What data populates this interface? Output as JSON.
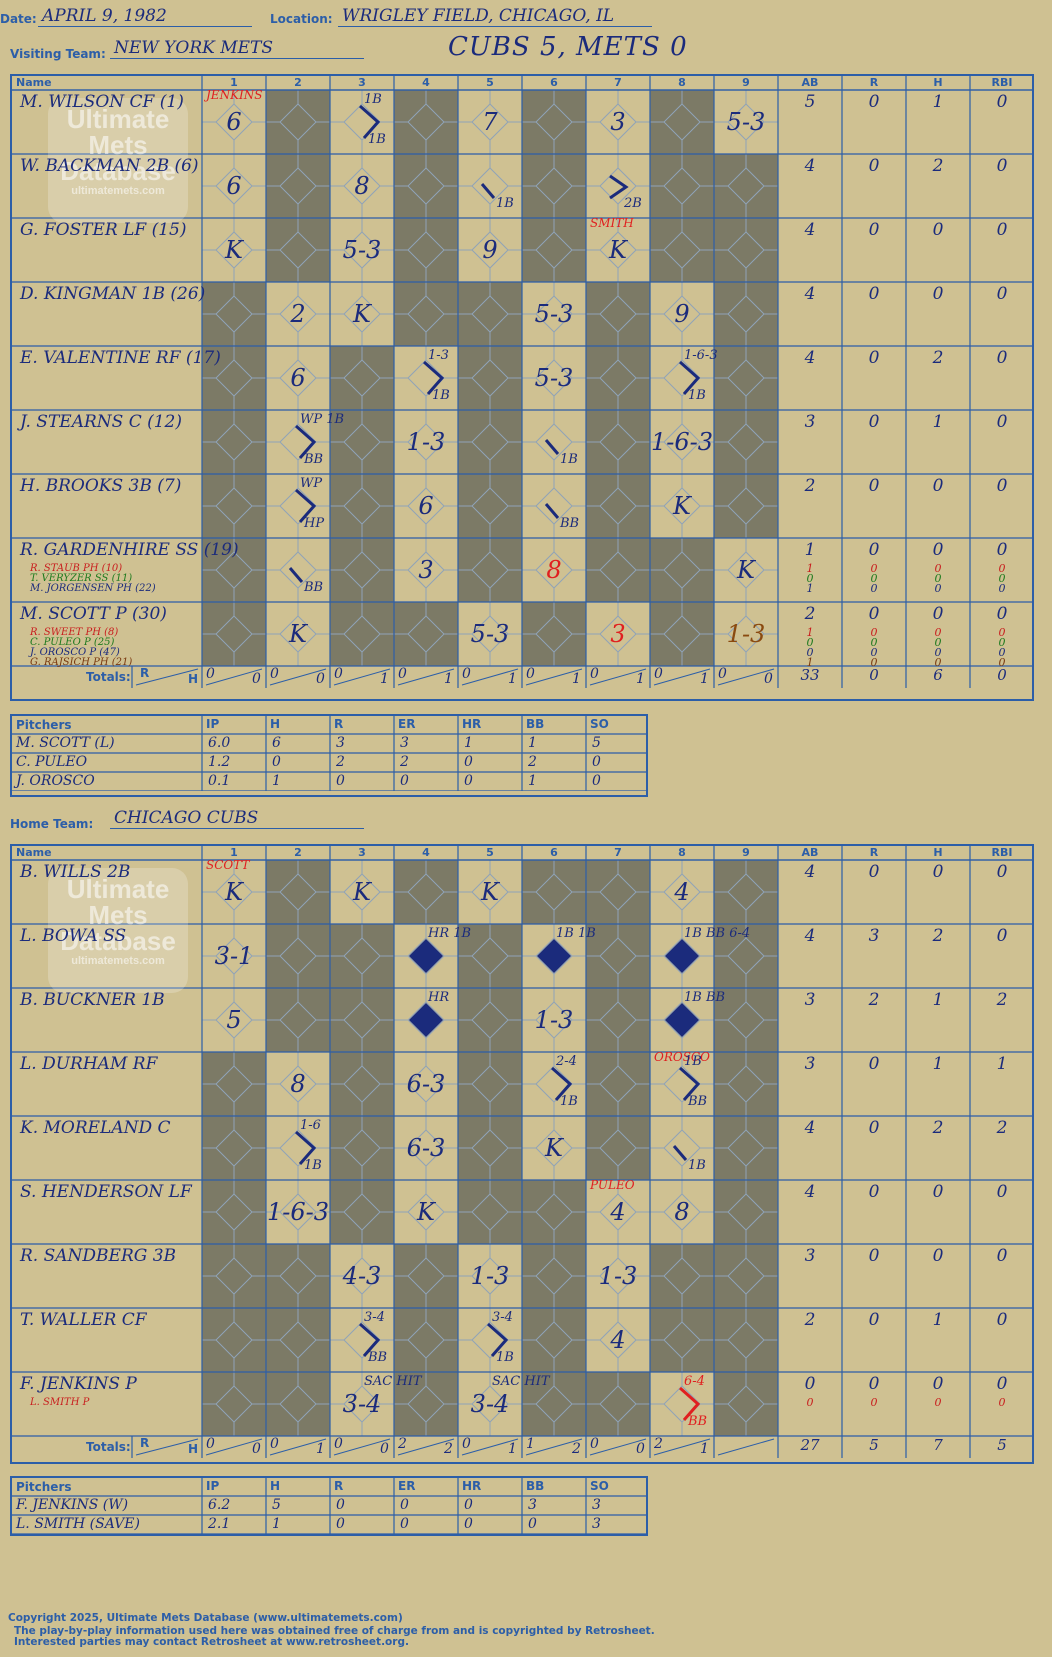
{
  "header": {
    "date_label": "Date:",
    "date": "APRIL 9, 1982",
    "location_label": "Location:",
    "location": "WRIGLEY FIELD, CHICAGO, IL",
    "visiting_label": "Visiting Team:",
    "visiting_team": "NEW YORK METS",
    "headline": "CUBS 5, METS 0",
    "home_label": "Home Team:",
    "home_team": "CHICAGO CUBS"
  },
  "columns": {
    "name": "Name",
    "innings": [
      "1",
      "2",
      "3",
      "4",
      "5",
      "6",
      "7",
      "8",
      "9"
    ],
    "stats": [
      "AB",
      "R",
      "H",
      "RBI"
    ],
    "totals": "Totals:",
    "r": "R",
    "h": "H"
  },
  "watermark": {
    "line1": "Ultimate",
    "line2": "Mets",
    "line3": "Database",
    "site": "ultimatemets.com"
  },
  "visitors": {
    "batters": [
      {
        "name": "M. WILSON CF (1)",
        "subs": [],
        "ab": "5",
        "r": "0",
        "h": "1",
        "rbi": "0",
        "marks": [
          {
            "i": 1,
            "t": "6"
          },
          {
            "i": 3,
            "t": "",
            "path": "1B",
            "note": "1B"
          },
          {
            "i": 5,
            "t": "7"
          },
          {
            "i": 7,
            "t": "3"
          },
          {
            "i": 9,
            "t": "5-3"
          }
        ],
        "pitcherNote": {
          "i": 1,
          "t": "JENKINS"
        }
      },
      {
        "name": "W. BACKMAN 2B (6)",
        "subs": [],
        "ab": "4",
        "r": "0",
        "h": "2",
        "rbi": "0",
        "marks": [
          {
            "i": 1,
            "t": "6"
          },
          {
            "i": 3,
            "t": "8"
          },
          {
            "i": 5,
            "t": "",
            "path": "1B"
          },
          {
            "i": 7,
            "t": "",
            "path": "2B"
          }
        ]
      },
      {
        "name": "G. FOSTER LF (15)",
        "subs": [],
        "ab": "4",
        "r": "0",
        "h": "0",
        "rbi": "0",
        "marks": [
          {
            "i": 1,
            "t": "K"
          },
          {
            "i": 3,
            "t": "5-3"
          },
          {
            "i": 5,
            "t": "9"
          },
          {
            "i": 7,
            "t": "K"
          }
        ],
        "pitcherNote": {
          "i": 7,
          "t": "SMITH"
        }
      },
      {
        "name": "D. KINGMAN 1B (26)",
        "subs": [],
        "ab": "4",
        "r": "0",
        "h": "0",
        "rbi": "0",
        "marks": [
          {
            "i": 2,
            "t": "2"
          },
          {
            "i": 3,
            "t": "K"
          },
          {
            "i": 6,
            "t": "5-3"
          },
          {
            "i": 8,
            "t": "9"
          }
        ]
      },
      {
        "name": "E. VALENTINE RF (17)",
        "subs": [],
        "ab": "4",
        "r": "0",
        "h": "2",
        "rbi": "0",
        "marks": [
          {
            "i": 2,
            "t": "6"
          },
          {
            "i": 4,
            "t": "",
            "path": "1B",
            "note": "1-3"
          },
          {
            "i": 6,
            "t": "5-3"
          },
          {
            "i": 8,
            "t": "",
            "path": "1B",
            "note": "1-6-3"
          }
        ]
      },
      {
        "name": "J. STEARNS C (12)",
        "subs": [],
        "ab": "3",
        "r": "0",
        "h": "1",
        "rbi": "0",
        "marks": [
          {
            "i": 2,
            "t": "",
            "path": "BB",
            "note": "WP 1B"
          },
          {
            "i": 4,
            "t": "1-3"
          },
          {
            "i": 6,
            "t": "",
            "path": "1B"
          },
          {
            "i": 8,
            "t": "1-6-3"
          }
        ]
      },
      {
        "name": "H. BROOKS 3B (7)",
        "subs": [],
        "ab": "2",
        "r": "0",
        "h": "0",
        "rbi": "0",
        "marks": [
          {
            "i": 2,
            "t": "",
            "path": "HP",
            "note": "WP"
          },
          {
            "i": 4,
            "t": "6"
          },
          {
            "i": 6,
            "t": "",
            "path": "BB"
          },
          {
            "i": 8,
            "t": "K"
          }
        ]
      },
      {
        "name": "R. GARDENHIRE SS (19)",
        "subs": [
          "R. STAUB PH (10)",
          "T. VERYZER SS (11)",
          "M. JORGENSEN PH (22)"
        ],
        "ab": "1",
        "r": "0",
        "h": "0",
        "rbi": "0",
        "subStats": [
          [
            "1",
            "0",
            "0",
            "0"
          ],
          [
            "0",
            "0",
            "0",
            "0"
          ],
          [
            "1",
            "0",
            "0",
            "0"
          ]
        ],
        "marks": [
          {
            "i": 2,
            "t": "",
            "path": "BB"
          },
          {
            "i": 4,
            "t": "3"
          },
          {
            "i": 6,
            "t": "8",
            "red": true
          },
          {
            "i": 9,
            "t": "K"
          }
        ]
      },
      {
        "name": "M. SCOTT P (30)",
        "subs": [
          "R. SWEET PH (8)",
          "C. PULEO P (25)",
          "J. OROSCO P (47)",
          "G. RAJSICH PH (21)"
        ],
        "ab": "2",
        "r": "0",
        "h": "0",
        "rbi": "0",
        "subStats": [
          [
            "1",
            "0",
            "0",
            "0"
          ],
          [
            "0",
            "0",
            "0",
            "0"
          ],
          [
            "0",
            "0",
            "0",
            "0"
          ],
          [
            "1",
            "0",
            "0",
            "0"
          ]
        ],
        "marks": [
          {
            "i": 2,
            "t": "K"
          },
          {
            "i": 5,
            "t": "5-3"
          },
          {
            "i": 7,
            "t": "3",
            "red": true
          },
          {
            "i": 9,
            "t": "1-3",
            "brown": true
          }
        ]
      }
    ],
    "totals": [
      [
        "0",
        "0"
      ],
      [
        "0",
        "0"
      ],
      [
        "0",
        "1"
      ],
      [
        "0",
        "1"
      ],
      [
        "0",
        "1"
      ],
      [
        "0",
        "1"
      ],
      [
        "0",
        "1"
      ],
      [
        "0",
        "1"
      ],
      [
        "0",
        "0"
      ]
    ],
    "stat_totals": [
      "33",
      "0",
      "6",
      "0"
    ],
    "pitchers_label": "Pitchers",
    "pitcher_cols": [
      "IP",
      "H",
      "R",
      "ER",
      "HR",
      "BB",
      "SO"
    ],
    "pitchers": [
      {
        "name": "M. SCOTT (L)",
        "vals": [
          "6.0",
          "6",
          "3",
          "3",
          "1",
          "1",
          "5"
        ]
      },
      {
        "name": "C. PULEO",
        "vals": [
          "1.2",
          "0",
          "2",
          "2",
          "0",
          "2",
          "0"
        ]
      },
      {
        "name": "J. OROSCO",
        "vals": [
          "0.1",
          "1",
          "0",
          "0",
          "0",
          "1",
          "0"
        ]
      }
    ]
  },
  "home": {
    "batters": [
      {
        "name": "B. WILLS 2B",
        "subs": [],
        "ab": "4",
        "r": "0",
        "h": "0",
        "rbi": "0",
        "marks": [
          {
            "i": 1,
            "t": "K"
          },
          {
            "i": 3,
            "t": "K"
          },
          {
            "i": 5,
            "t": "K"
          },
          {
            "i": 8,
            "t": "4"
          }
        ],
        "pitcherNote": {
          "i": 1,
          "t": "SCOTT"
        }
      },
      {
        "name": "L. BOWA SS",
        "subs": [],
        "ab": "4",
        "r": "3",
        "h": "2",
        "rbi": "0",
        "marks": [
          {
            "i": 1,
            "t": "3-1"
          },
          {
            "i": 4,
            "t": "",
            "run": true,
            "note": "HR 1B"
          },
          {
            "i": 6,
            "t": "",
            "run": true,
            "note": "1B 1B"
          },
          {
            "i": 8,
            "t": "",
            "run": true,
            "note": "1B BB 6-4"
          }
        ]
      },
      {
        "name": "B. BUCKNER 1B",
        "subs": [],
        "ab": "3",
        "r": "2",
        "h": "1",
        "rbi": "2",
        "marks": [
          {
            "i": 1,
            "t": "5"
          },
          {
            "i": 4,
            "t": "",
            "run": true,
            "note": "HR"
          },
          {
            "i": 6,
            "t": "1-3"
          },
          {
            "i": 8,
            "t": "",
            "run": true,
            "note": "1B BB"
          }
        ]
      },
      {
        "name": "L. DURHAM RF",
        "subs": [],
        "ab": "3",
        "r": "0",
        "h": "1",
        "rbi": "1",
        "marks": [
          {
            "i": 2,
            "t": "8"
          },
          {
            "i": 4,
            "t": "6-3"
          },
          {
            "i": 6,
            "t": "",
            "path": "1B",
            "note": "2-4"
          },
          {
            "i": 8,
            "t": "",
            "path": "BB",
            "note": "1B"
          }
        ],
        "pitcherNote": {
          "i": 8,
          "t": "OROSCO"
        }
      },
      {
        "name": "K. MORELAND C",
        "subs": [],
        "ab": "4",
        "r": "0",
        "h": "2",
        "rbi": "2",
        "marks": [
          {
            "i": 2,
            "t": "",
            "path": "1B",
            "note": "1-6"
          },
          {
            "i": 4,
            "t": "6-3"
          },
          {
            "i": 6,
            "t": "K"
          },
          {
            "i": 8,
            "t": "",
            "path": "1B"
          }
        ]
      },
      {
        "name": "S. HENDERSON LF",
        "subs": [],
        "ab": "4",
        "r": "0",
        "h": "0",
        "rbi": "0",
        "marks": [
          {
            "i": 2,
            "t": "1-6-3"
          },
          {
            "i": 4,
            "t": "K"
          },
          {
            "i": 7,
            "t": "4"
          },
          {
            "i": 8,
            "t": "8"
          }
        ],
        "pitcherNote": {
          "i": 7,
          "t": "PULEO"
        }
      },
      {
        "name": "R. SANDBERG 3B",
        "subs": [],
        "ab": "3",
        "r": "0",
        "h": "0",
        "rbi": "0",
        "marks": [
          {
            "i": 3,
            "t": "4-3"
          },
          {
            "i": 5,
            "t": "1-3"
          },
          {
            "i": 7,
            "t": "1-3"
          }
        ]
      },
      {
        "name": "T. WALLER CF",
        "subs": [],
        "ab": "2",
        "r": "0",
        "h": "1",
        "rbi": "0",
        "marks": [
          {
            "i": 3,
            "t": "",
            "path": "BB",
            "note": "3-4"
          },
          {
            "i": 5,
            "t": "",
            "path": "1B",
            "note": "3-4"
          },
          {
            "i": 7,
            "t": "4"
          }
        ]
      },
      {
        "name": "F. JENKINS P",
        "subs": [
          "L. SMITH P"
        ],
        "ab": "0",
        "r": "0",
        "h": "0",
        "rbi": "0",
        "subStats": [
          [
            "0",
            "0",
            "0",
            "0"
          ]
        ],
        "marks": [
          {
            "i": 3,
            "t": "3-4",
            "note": "SAC HIT"
          },
          {
            "i": 5,
            "t": "3-4",
            "note": "SAC HIT"
          },
          {
            "i": 8,
            "t": "",
            "path": "BB",
            "note": "6-4",
            "red": true
          }
        ]
      }
    ],
    "totals": [
      [
        "0",
        "0"
      ],
      [
        "0",
        "1"
      ],
      [
        "0",
        "0"
      ],
      [
        "2",
        "2"
      ],
      [
        "0",
        "1"
      ],
      [
        "1",
        "2"
      ],
      [
        "0",
        "0"
      ],
      [
        "2",
        "1"
      ],
      [
        "",
        ""
      ]
    ],
    "stat_totals": [
      "27",
      "5",
      "7",
      "5"
    ],
    "pitchers_label": "Pitchers",
    "pitcher_cols": [
      "IP",
      "H",
      "R",
      "ER",
      "HR",
      "BB",
      "SO"
    ],
    "pitchers": [
      {
        "name": "F. JENKINS (W)",
        "vals": [
          "6.2",
          "5",
          "0",
          "0",
          "0",
          "3",
          "3"
        ]
      },
      {
        "name": "L. SMITH (SAVE)",
        "vals": [
          "2.1",
          "1",
          "0",
          "0",
          "0",
          "0",
          "3"
        ]
      }
    ]
  },
  "footer": {
    "line1": "Copyright 2025, Ultimate Mets Database (www.ultimatemets.com)",
    "line2": "The play-by-play information used here was obtained free of charge from and is copyrighted by Retrosheet.",
    "line3": "Interested parties may contact Retrosheet at www.retrosheet.org."
  },
  "colors": {
    "bg": "#cfc192",
    "grid": "#2c5ea8",
    "shade": "#7c7a66",
    "ink": "#1b2b7c",
    "red": "#e02020"
  }
}
